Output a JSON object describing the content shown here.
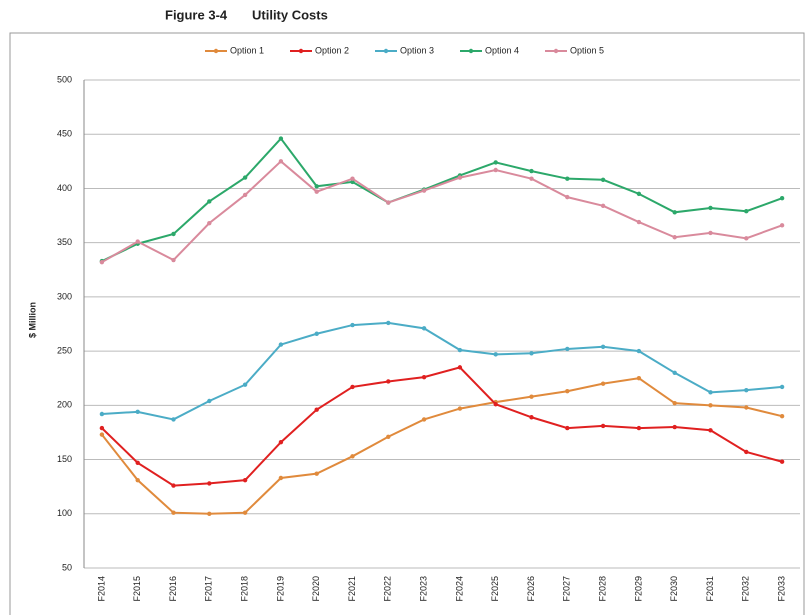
{
  "chart_data": {
    "type": "line",
    "figure_label": "Figure 3-4",
    "title": "Utility Costs",
    "y_label": "$ Million",
    "categories": [
      "F2014",
      "F2015",
      "F2016",
      "F2017",
      "F2018",
      "F2019",
      "F2020",
      "F2021",
      "F2022",
      "F2023",
      "F2024",
      "F2025",
      "F2026",
      "F2027",
      "F2028",
      "F2029",
      "F2030",
      "F2031",
      "F2032",
      "F2033"
    ],
    "series": [
      {
        "name": "Option 1",
        "color": "#e08a3c",
        "values": [
          173,
          131,
          101,
          100,
          101,
          133,
          137,
          153,
          171,
          187,
          197,
          203,
          208,
          213,
          220,
          225,
          202,
          200,
          198,
          190
        ]
      },
      {
        "name": "Option 2",
        "color": "#e02020",
        "values": [
          179,
          147,
          126,
          128,
          131,
          166,
          196,
          217,
          222,
          226,
          235,
          201,
          189,
          179,
          181,
          179,
          180,
          177,
          157,
          148
        ]
      },
      {
        "name": "Option 3",
        "color": "#4bacc6",
        "values": [
          192,
          194,
          187,
          204,
          219,
          256,
          266,
          274,
          276,
          271,
          251,
          247,
          248,
          252,
          254,
          250,
          230,
          212,
          214,
          217
        ]
      },
      {
        "name": "Option 4",
        "color": "#2ca86a",
        "values": [
          333,
          349,
          358,
          388,
          410,
          446,
          402,
          406,
          387,
          399,
          412,
          424,
          416,
          409,
          408,
          395,
          378,
          382,
          379,
          391
        ]
      },
      {
        "name": "Option 5",
        "color": "#d98a9c",
        "values": [
          332,
          351,
          334,
          368,
          394,
          425,
          397,
          409,
          387,
          398,
          410,
          417,
          409,
          392,
          384,
          369,
          355,
          359,
          354,
          366
        ]
      }
    ],
    "ylim": [
      50,
      500
    ],
    "yticks": [
      50,
      100,
      150,
      200,
      250,
      300,
      350,
      400,
      450,
      500
    ],
    "grid": true,
    "legend": "top"
  }
}
